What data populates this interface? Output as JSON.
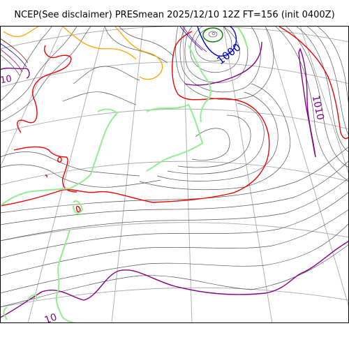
{
  "title": "NCEP(See disclaimer) PRESmean 2025/12/10 12Z FT=156 (init 0400Z)",
  "isobar_labels": {
    "label_1000": "1000",
    "label_1010_east": "1010",
    "label_1010_sw": "10",
    "label_nw": "10"
  },
  "colors": {
    "isobar": "#555555",
    "isobar_1000": "#0000cc",
    "isobar_1010": "#880088",
    "isobar_1012": "#ee0000",
    "coastline": "#90ee90",
    "graticule": "#aaaaaa",
    "highlight_orange": "#ffa500",
    "low_center": "#008000"
  }
}
